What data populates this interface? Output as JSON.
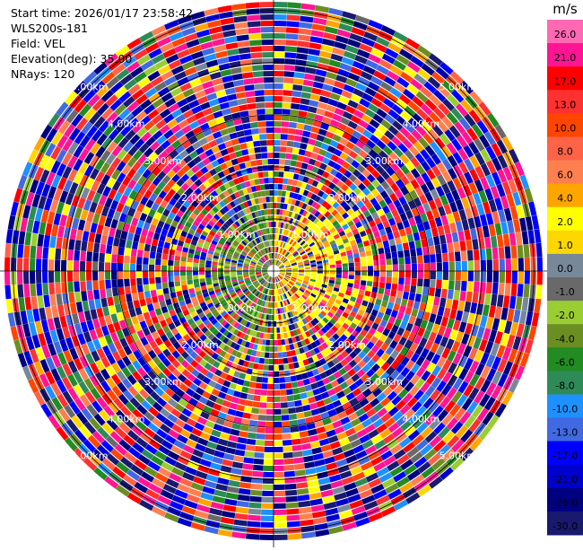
{
  "header": {
    "start_time": "Start time: 2026/01/17 23:58:42",
    "instrument": "WLS200s-181",
    "field": "Field: VEL",
    "elevation": "Elevation(deg): 35.00",
    "nrays": "NRays: 120"
  },
  "chart_data": {
    "type": "heatmap",
    "projection": "polar",
    "n_rays": 120,
    "max_range_km": 5.2,
    "range_rings_km": [
      1,
      2,
      3,
      4,
      5
    ],
    "ring_labels": [
      "1.00km",
      "2.00km",
      "3.00km",
      "4.00km",
      "5.00km"
    ],
    "colorbar": {
      "unit": "m/s",
      "tick_labels": [
        "26.0",
        "21.0",
        "17.0",
        "13.0",
        "10.0",
        "8.0",
        "6.0",
        "4.0",
        "2.0",
        "1.0",
        "0.0",
        "-1.0",
        "-2.0",
        "-4.0",
        "-6.0",
        "-8.0",
        "-10.0",
        "-13.0",
        "-17.0",
        "-21.0",
        "-26.0",
        "-30.0"
      ],
      "bins": [
        {
          "min": -30,
          "max": -26,
          "color": "#191970"
        },
        {
          "min": -26,
          "max": -21,
          "color": "#000080"
        },
        {
          "min": -21,
          "max": -17,
          "color": "#0000cd"
        },
        {
          "min": -17,
          "max": -13,
          "color": "#0000ff"
        },
        {
          "min": -13,
          "max": -10,
          "color": "#4169e1"
        },
        {
          "min": -10,
          "max": -8,
          "color": "#1e90ff"
        },
        {
          "min": -8,
          "max": -6,
          "color": "#2e8b57"
        },
        {
          "min": -6,
          "max": -4,
          "color": "#228b22"
        },
        {
          "min": -4,
          "max": -2,
          "color": "#6b8e23"
        },
        {
          "min": -2,
          "max": -1,
          "color": "#9acd32"
        },
        {
          "min": -1,
          "max": 0,
          "color": "#696969"
        },
        {
          "min": 0,
          "max": 1,
          "color": "#778899"
        },
        {
          "min": 1,
          "max": 2,
          "color": "#ffd700"
        },
        {
          "min": 2,
          "max": 4,
          "color": "#ffff00"
        },
        {
          "min": 4,
          "max": 6,
          "color": "#ffa500"
        },
        {
          "min": 6,
          "max": 8,
          "color": "#ff7f50"
        },
        {
          "min": 8,
          "max": 10,
          "color": "#ff6347"
        },
        {
          "min": 10,
          "max": 13,
          "color": "#ff4500"
        },
        {
          "min": 13,
          "max": 17,
          "color": "#ff3030"
        },
        {
          "min": 17,
          "max": 21,
          "color": "#ff0000"
        },
        {
          "min": 21,
          "max": 26,
          "color": "#ff1493"
        },
        {
          "min": 26,
          "max": 30,
          "color": "#ff69b4"
        }
      ]
    }
  }
}
